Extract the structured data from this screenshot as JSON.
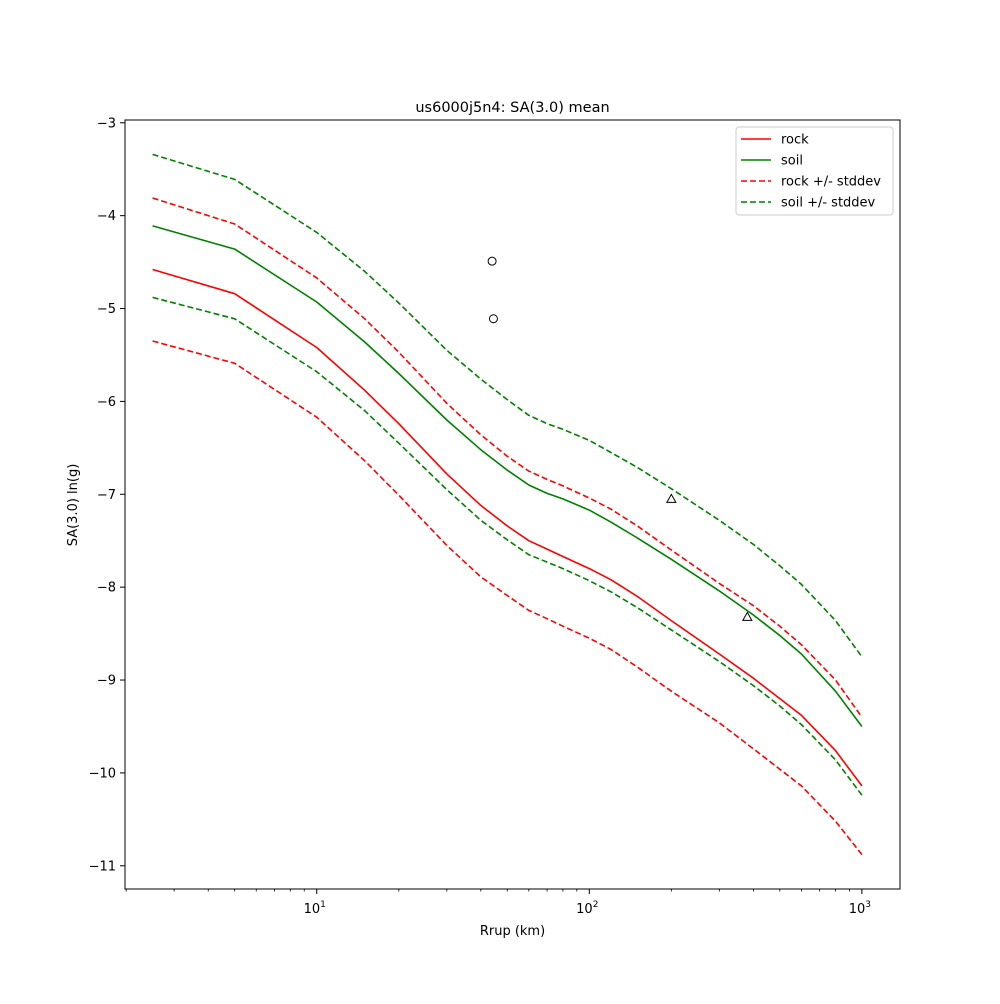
{
  "chart_data": {
    "type": "line",
    "title": "us6000j5n4: SA(3.0) mean",
    "xlabel": "Rrup (km)",
    "ylabel": "SA(3.0) ln(g)",
    "xscale": "log",
    "xlim": [
      1.98,
      1380
    ],
    "ylim": [
      -11.25,
      -2.97
    ],
    "grid": false,
    "legend_position": "top-right",
    "x_ticks": [
      {
        "value": 10,
        "base": "10",
        "exp": "1"
      },
      {
        "value": 100,
        "base": "10",
        "exp": "2"
      },
      {
        "value": 1000,
        "base": "10",
        "exp": "3"
      }
    ],
    "y_ticks": [
      {
        "value": -3,
        "label": "−3"
      },
      {
        "value": -4,
        "label": "−4"
      },
      {
        "value": -5,
        "label": "−5"
      },
      {
        "value": -6,
        "label": "−6"
      },
      {
        "value": -7,
        "label": "−7"
      },
      {
        "value": -8,
        "label": "−8"
      },
      {
        "value": -9,
        "label": "−9"
      },
      {
        "value": -10,
        "label": "−10"
      },
      {
        "value": -11,
        "label": "−11"
      }
    ],
    "x": [
      2.5,
      5,
      10,
      15,
      20,
      30,
      40,
      50,
      60,
      70,
      80,
      100,
      120,
      150,
      200,
      300,
      400,
      500,
      600,
      800,
      1000
    ],
    "series": [
      {
        "name": "rock",
        "color": "#ff0000",
        "dash": false,
        "values": [
          -4.58,
          -4.84,
          -5.42,
          -5.88,
          -6.24,
          -6.78,
          -7.12,
          -7.34,
          -7.5,
          -7.59,
          -7.67,
          -7.8,
          -7.92,
          -8.1,
          -8.36,
          -8.72,
          -8.98,
          -9.2,
          -9.38,
          -9.76,
          -10.14
        ]
      },
      {
        "name": "soil",
        "color": "#008000",
        "dash": false,
        "values": [
          -4.11,
          -4.36,
          -4.93,
          -5.36,
          -5.7,
          -6.2,
          -6.52,
          -6.74,
          -6.9,
          -6.99,
          -7.05,
          -7.17,
          -7.3,
          -7.47,
          -7.7,
          -8.04,
          -8.3,
          -8.52,
          -8.72,
          -9.12,
          -9.5
        ]
      },
      {
        "name": "rock +/- stddev",
        "color": "#ff0000",
        "dash": true,
        "values": [
          -3.81,
          -4.09,
          -4.67,
          -5.11,
          -5.47,
          -6.02,
          -6.36,
          -6.59,
          -6.75,
          -6.84,
          -6.91,
          -7.04,
          -7.16,
          -7.34,
          -7.6,
          -7.96,
          -8.2,
          -8.42,
          -8.62,
          -9.0,
          -9.4
        ]
      },
      {
        "name": "",
        "color": "#ff0000",
        "dash": true,
        "values": [
          -5.35,
          -5.59,
          -6.17,
          -6.64,
          -7.01,
          -7.55,
          -7.89,
          -8.09,
          -8.25,
          -8.34,
          -8.42,
          -8.55,
          -8.67,
          -8.86,
          -9.12,
          -9.46,
          -9.74,
          -9.96,
          -10.14,
          -10.52,
          -10.88
        ]
      },
      {
        "name": "soil +/- stddev",
        "color": "#008000",
        "dash": true,
        "values": [
          -3.34,
          -3.61,
          -4.18,
          -4.6,
          -4.94,
          -5.45,
          -5.76,
          -5.98,
          -6.15,
          -6.24,
          -6.3,
          -6.42,
          -6.55,
          -6.71,
          -6.94,
          -7.28,
          -7.54,
          -7.77,
          -7.97,
          -8.36,
          -8.75
        ]
      },
      {
        "name": "",
        "color": "#008000",
        "dash": true,
        "values": [
          -4.88,
          -5.11,
          -5.68,
          -6.1,
          -6.45,
          -6.95,
          -7.28,
          -7.49,
          -7.65,
          -7.73,
          -7.8,
          -7.93,
          -8.05,
          -8.22,
          -8.46,
          -8.8,
          -9.06,
          -9.28,
          -9.48,
          -9.86,
          -10.24
        ]
      }
    ],
    "markers": [
      {
        "shape": "circle",
        "x": 44,
        "y": -4.49
      },
      {
        "shape": "circle",
        "x": 44.5,
        "y": -5.11
      },
      {
        "shape": "triangle",
        "x": 200,
        "y": -7.05
      },
      {
        "shape": "triangle",
        "x": 380,
        "y": -8.32
      }
    ]
  }
}
